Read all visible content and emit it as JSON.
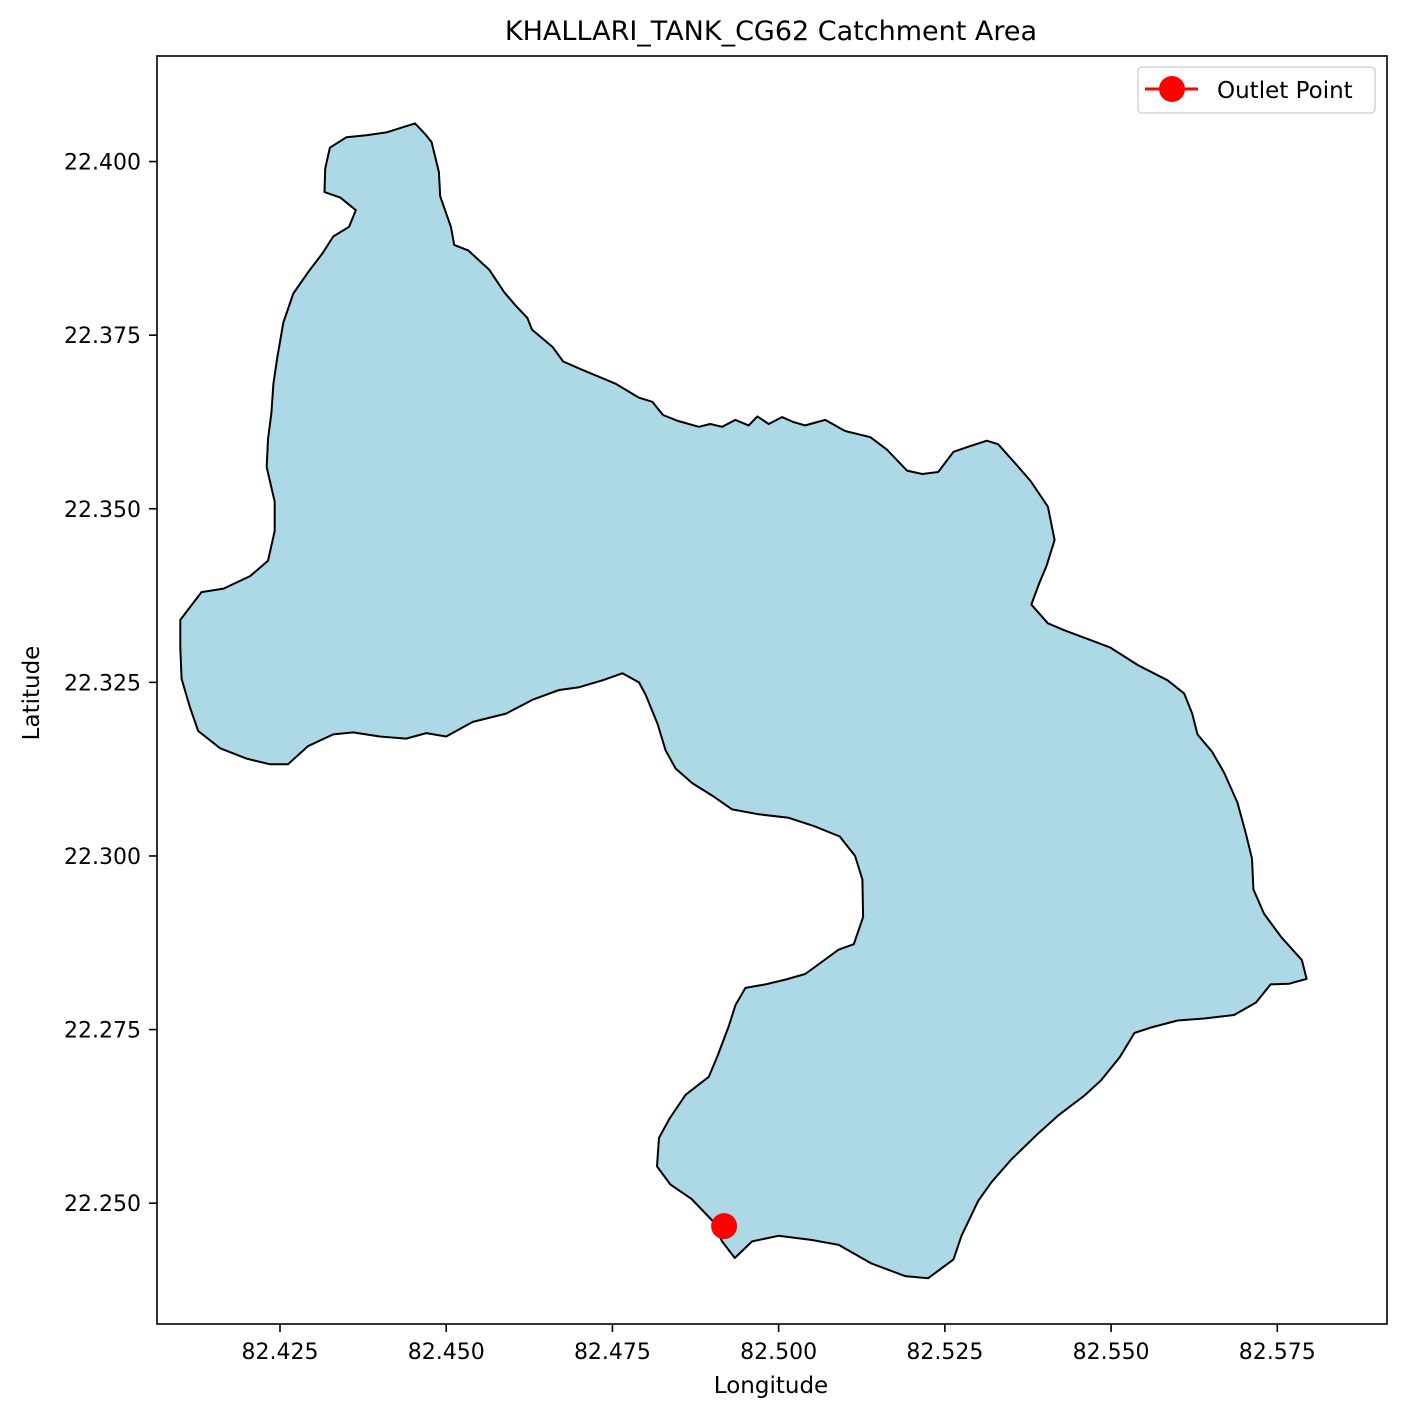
{
  "chart_data": {
    "type": "map",
    "title": "KHALLARI_TANK_CG62 Catchment Area",
    "xlabel": "Longitude",
    "ylabel": "Latitude",
    "xlim": [
      82.4065,
      82.5915
    ],
    "ylim": [
      22.2326,
      22.4152
    ],
    "x_ticks": [
      "82.425",
      "82.450",
      "82.475",
      "82.500",
      "82.525",
      "82.550",
      "82.575"
    ],
    "y_ticks": [
      "22.250",
      "22.275",
      "22.300",
      "22.325",
      "22.350",
      "22.375",
      "22.400"
    ],
    "grid": false,
    "legend": {
      "placement": "top-right",
      "entries": [
        "Outlet Point"
      ]
    },
    "catchment": {
      "fill_color": "#add8e6",
      "edge_color": "#000000",
      "boundary": [
        [
          82.4453,
          22.4055
        ],
        [
          82.4468,
          22.404
        ],
        [
          82.4478,
          22.4028
        ],
        [
          82.4489,
          22.3985
        ],
        [
          82.4491,
          22.395
        ],
        [
          82.4507,
          22.3906
        ],
        [
          82.4512,
          22.388
        ],
        [
          82.4533,
          22.3872
        ],
        [
          82.4565,
          22.3844
        ],
        [
          82.4587,
          22.3812
        ],
        [
          82.4605,
          22.3792
        ],
        [
          82.4622,
          22.3775
        ],
        [
          82.4629,
          22.3758
        ],
        [
          82.466,
          22.3733
        ],
        [
          82.4676,
          22.3712
        ],
        [
          82.4705,
          22.37
        ],
        [
          82.473,
          22.369
        ],
        [
          82.4755,
          22.368
        ],
        [
          82.479,
          22.366
        ],
        [
          82.481,
          22.3654
        ],
        [
          82.4826,
          22.3635
        ],
        [
          82.4847,
          22.3627
        ],
        [
          82.488,
          22.3618
        ],
        [
          82.4897,
          22.3622
        ],
        [
          82.4915,
          22.3618
        ],
        [
          82.4935,
          22.3628
        ],
        [
          82.4955,
          22.362
        ],
        [
          82.4968,
          22.3633
        ],
        [
          82.4985,
          22.3622
        ],
        [
          82.5005,
          22.3632
        ],
        [
          82.5022,
          22.3625
        ],
        [
          82.504,
          22.362
        ],
        [
          82.507,
          22.3628
        ],
        [
          82.51,
          22.3612
        ],
        [
          82.5138,
          22.3603
        ],
        [
          82.5163,
          22.3585
        ],
        [
          82.5193,
          22.3555
        ],
        [
          82.5216,
          22.355
        ],
        [
          82.524,
          22.3553
        ],
        [
          82.5263,
          22.3582
        ],
        [
          82.5287,
          22.359
        ],
        [
          82.5313,
          22.3598
        ],
        [
          82.533,
          22.3593
        ],
        [
          82.5358,
          22.3563
        ],
        [
          82.5379,
          22.354
        ],
        [
          82.5405,
          22.3503
        ],
        [
          82.5415,
          22.3455
        ],
        [
          82.5403,
          22.3418
        ],
        [
          82.5392,
          22.3393
        ],
        [
          82.538,
          22.3362
        ],
        [
          82.5405,
          22.3335
        ],
        [
          82.543,
          22.3325
        ],
        [
          82.5463,
          22.3313
        ],
        [
          82.5499,
          22.33
        ],
        [
          82.554,
          22.3275
        ],
        [
          82.5585,
          22.3253
        ],
        [
          82.561,
          22.3234
        ],
        [
          82.5622,
          22.3205
        ],
        [
          82.563,
          22.3175
        ],
        [
          82.5652,
          22.315
        ],
        [
          82.567,
          22.312
        ],
        [
          82.569,
          22.3077
        ],
        [
          82.5702,
          22.3035
        ],
        [
          82.5712,
          22.2996
        ],
        [
          82.5714,
          22.2952
        ],
        [
          82.573,
          22.2917
        ],
        [
          82.5756,
          22.2883
        ],
        [
          82.5787,
          22.285
        ],
        [
          82.5794,
          22.2823
        ],
        [
          82.5768,
          22.2816
        ],
        [
          82.574,
          22.2815
        ],
        [
          82.5718,
          22.2789
        ],
        [
          82.5685,
          22.2771
        ],
        [
          82.564,
          22.2766
        ],
        [
          82.56,
          22.2763
        ],
        [
          82.556,
          22.2753
        ],
        [
          82.5535,
          22.2745
        ],
        [
          82.5513,
          22.271
        ],
        [
          82.5485,
          22.2677
        ],
        [
          82.546,
          22.2655
        ],
        [
          82.542,
          22.2626
        ],
        [
          82.539,
          22.26
        ],
        [
          82.535,
          22.2563
        ],
        [
          82.532,
          22.253
        ],
        [
          82.53,
          22.2503
        ],
        [
          82.5275,
          22.2453
        ],
        [
          82.5263,
          22.2419
        ],
        [
          82.5225,
          22.2392
        ],
        [
          82.519,
          22.2395
        ],
        [
          82.514,
          22.2413
        ],
        [
          82.509,
          22.244
        ],
        [
          82.505,
          22.2447
        ],
        [
          82.5,
          22.2453
        ],
        [
          82.496,
          22.2445
        ],
        [
          82.4934,
          22.2421
        ],
        [
          82.4915,
          22.2445
        ],
        [
          82.49,
          22.2475
        ],
        [
          82.4869,
          22.2506
        ],
        [
          82.4837,
          22.2527
        ],
        [
          82.4817,
          22.2553
        ],
        [
          82.482,
          22.2594
        ],
        [
          82.4836,
          22.2622
        ],
        [
          82.486,
          22.2656
        ],
        [
          82.4895,
          22.2682
        ],
        [
          82.4908,
          22.2712
        ],
        [
          82.4925,
          22.2755
        ],
        [
          82.4935,
          22.2785
        ],
        [
          82.495,
          22.281
        ],
        [
          82.498,
          22.2815
        ],
        [
          82.501,
          22.2822
        ],
        [
          82.504,
          22.283
        ],
        [
          82.5073,
          22.2853
        ],
        [
          82.509,
          22.2865
        ],
        [
          82.5113,
          22.2873
        ],
        [
          82.5127,
          22.2912
        ],
        [
          82.5126,
          22.2966
        ],
        [
          82.5115,
          22.3
        ],
        [
          82.5092,
          22.3028
        ],
        [
          82.5053,
          22.3043
        ],
        [
          82.5015,
          22.3055
        ],
        [
          82.497,
          22.306
        ],
        [
          82.493,
          22.3067
        ],
        [
          82.49,
          22.3087
        ],
        [
          82.487,
          22.3105
        ],
        [
          82.4845,
          22.3126
        ],
        [
          82.483,
          22.3152
        ],
        [
          82.4818,
          22.319
        ],
        [
          82.48,
          22.3232
        ],
        [
          82.479,
          22.325
        ],
        [
          82.4765,
          22.3263
        ],
        [
          82.4735,
          22.3253
        ],
        [
          82.47,
          22.3243
        ],
        [
          82.467,
          22.3239
        ],
        [
          82.463,
          22.3225
        ],
        [
          82.459,
          22.3205
        ],
        [
          82.454,
          22.3193
        ],
        [
          82.45,
          22.3172
        ],
        [
          82.447,
          22.3177
        ],
        [
          82.444,
          22.3169
        ],
        [
          82.44,
          22.3172
        ],
        [
          82.436,
          22.3178
        ],
        [
          82.433,
          22.3175
        ],
        [
          82.4292,
          22.3158
        ],
        [
          82.4262,
          22.3132
        ],
        [
          82.4235,
          22.3132
        ],
        [
          82.42,
          22.314
        ],
        [
          82.416,
          22.3155
        ],
        [
          82.4127,
          22.318
        ],
        [
          82.4115,
          22.3213
        ],
        [
          82.4102,
          22.3255
        ],
        [
          82.41,
          22.33
        ],
        [
          82.41,
          22.334
        ],
        [
          82.4132,
          22.338
        ],
        [
          82.4165,
          22.3385
        ],
        [
          82.4205,
          22.3403
        ],
        [
          82.4232,
          22.3425
        ],
        [
          82.4242,
          22.3468
        ],
        [
          82.4242,
          22.351
        ],
        [
          82.423,
          22.356
        ],
        [
          82.4232,
          22.36
        ],
        [
          82.4237,
          22.3638
        ],
        [
          82.424,
          22.368
        ],
        [
          82.4246,
          22.3718
        ],
        [
          82.4255,
          22.3768
        ],
        [
          82.427,
          22.381
        ],
        [
          82.4294,
          22.3843
        ],
        [
          82.4314,
          22.3868
        ],
        [
          82.433,
          22.3892
        ],
        [
          82.4354,
          22.3906
        ],
        [
          82.4364,
          22.393
        ],
        [
          82.4341,
          22.3948
        ],
        [
          82.4317,
          22.3956
        ],
        [
          82.4318,
          22.399
        ],
        [
          82.4325,
          22.402
        ],
        [
          82.435,
          22.4035
        ],
        [
          82.438,
          22.4038
        ],
        [
          82.441,
          22.4042
        ],
        [
          82.4453,
          22.4055
        ]
      ]
    },
    "outlet_point": {
      "lon": 82.4918,
      "lat": 22.2467,
      "color": "#ff0000"
    }
  }
}
